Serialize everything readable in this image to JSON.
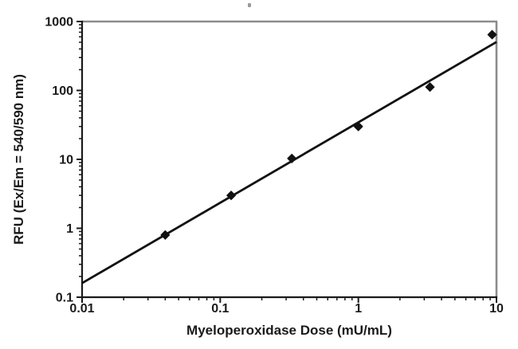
{
  "figure": {
    "background": "#ffffff",
    "axis_color": "#1a1a1a",
    "frame_color": "#8c8c8c",
    "marker_color": "#111111",
    "fit_line_color": "#111111"
  },
  "chart_data": {
    "type": "scatter",
    "title": "",
    "xlabel": "Myeloperoxidase Dose (mU/mL)",
    "ylabel": "RFU (Ex/Em = 540/590 nm)",
    "x_scale": "log",
    "y_scale": "log",
    "xlim": [
      0.01,
      10
    ],
    "ylim": [
      0.1,
      1000
    ],
    "x_ticks": [
      "0.01",
      "0.1",
      "1",
      "10"
    ],
    "y_ticks": [
      "0.1",
      "1",
      "10",
      "100",
      "1000"
    ],
    "grid": false,
    "legend": "none",
    "marker_shape": "diamond",
    "points": {
      "x": [
        0.04,
        0.12,
        0.33,
        1.0,
        3.3,
        9.3
      ],
      "y": [
        0.8,
        3.0,
        10.3,
        30,
        112,
        645
      ]
    },
    "fit_line": {
      "x1": 0.01,
      "y1": 0.16,
      "x2": 10,
      "y2": 505
    }
  }
}
